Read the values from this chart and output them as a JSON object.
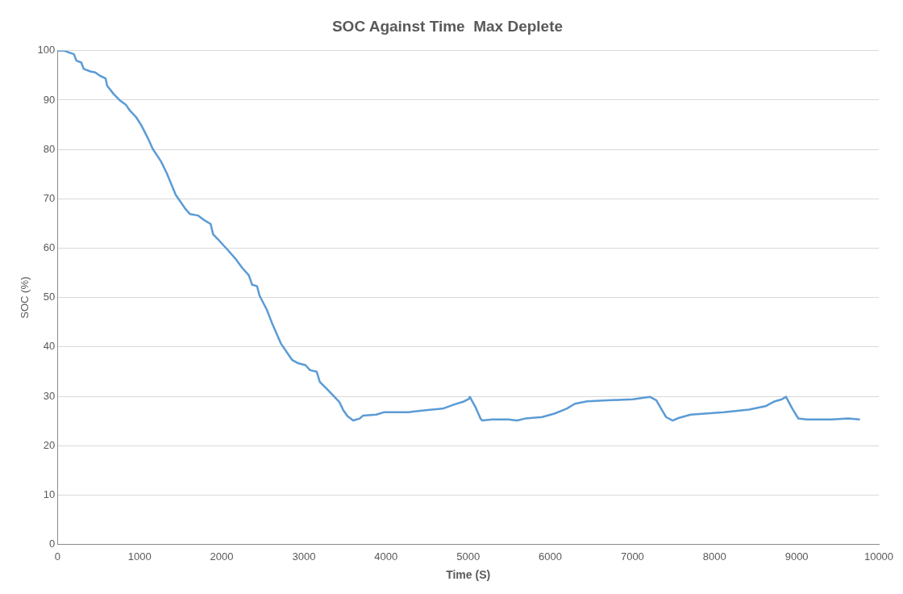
{
  "chart_data": {
    "type": "line",
    "title": "SOC Against Time  Max Deplete",
    "xlabel": "Time (S)",
    "ylabel": "SOC (%)",
    "xlim": [
      0,
      10000
    ],
    "ylim": [
      0,
      100
    ],
    "xticks": [
      0,
      1000,
      2000,
      3000,
      4000,
      5000,
      6000,
      7000,
      8000,
      9000,
      10000
    ],
    "yticks": [
      0,
      10,
      20,
      30,
      40,
      50,
      60,
      70,
      80,
      90,
      100
    ],
    "grid": "y",
    "legend": false,
    "marker": "none",
    "line_style": "solid",
    "series": [
      {
        "color": "#5b9bd5",
        "x": [
          0,
          80,
          200,
          230,
          290,
          320,
          400,
          460,
          520,
          585,
          605,
          685,
          755,
          835,
          885,
          955,
          1020,
          1100,
          1160,
          1260,
          1330,
          1440,
          1560,
          1615,
          1715,
          1785,
          1865,
          1895,
          1965,
          2065,
          2165,
          2250,
          2330,
          2370,
          2430,
          2460,
          2550,
          2620,
          2720,
          2855,
          2930,
          3020,
          3075,
          3155,
          3195,
          3275,
          3355,
          3430,
          3480,
          3530,
          3600,
          3680,
          3720,
          3880,
          3980,
          4285,
          4485,
          4690,
          4840,
          4940,
          5010,
          5020,
          5090,
          5150,
          5170,
          5290,
          5490,
          5595,
          5695,
          5900,
          6050,
          6200,
          6300,
          6450,
          6700,
          7005,
          7210,
          7290,
          7360,
          7410,
          7490,
          7560,
          7710,
          8115,
          8420,
          8620,
          8720,
          8820,
          8870,
          8940,
          9020,
          9125,
          9425,
          9625,
          9770
        ],
        "values": [
          100,
          100,
          99.3,
          98,
          97.6,
          96.3,
          95.8,
          95.6,
          94.9,
          94.4,
          92.9,
          91.2,
          90,
          89,
          87.8,
          86.6,
          84.9,
          82.3,
          80.1,
          77.6,
          75.2,
          70.8,
          67.9,
          66.9,
          66.6,
          65.7,
          64.9,
          62.8,
          61.6,
          59.8,
          57.9,
          56,
          54.5,
          52.6,
          52.3,
          50.4,
          47.5,
          44.5,
          40.7,
          37.4,
          36.7,
          36.3,
          35.3,
          35,
          32.9,
          31.6,
          30.2,
          28.9,
          27.2,
          26,
          25.1,
          25.5,
          26.1,
          26.3,
          26.8,
          26.8,
          27.2,
          27.5,
          28.4,
          28.9,
          29.5,
          29.9,
          27.8,
          25.5,
          25.1,
          25.3,
          25.3,
          25.1,
          25.5,
          25.8,
          26.5,
          27.5,
          28.5,
          29,
          29.2,
          29.4,
          29.9,
          29.2,
          27.2,
          25.8,
          25.1,
          25.6,
          26.3,
          26.8,
          27.3,
          28,
          28.9,
          29.4,
          29.9,
          27.7,
          25.5,
          25.3,
          25.3,
          25.5,
          25.3
        ]
      }
    ]
  }
}
